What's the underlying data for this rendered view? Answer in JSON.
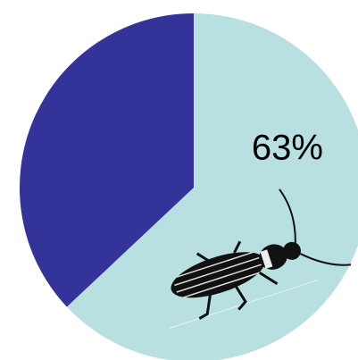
{
  "chart_data": {
    "type": "pie",
    "categories": [
      null,
      null
    ],
    "values": [
      63,
      37
    ],
    "value_labels": [
      "63%",
      null
    ],
    "colors": [
      "#b8e0e0",
      "#333399"
    ],
    "start_angle": 0,
    "direction": "clockwise"
  }
}
